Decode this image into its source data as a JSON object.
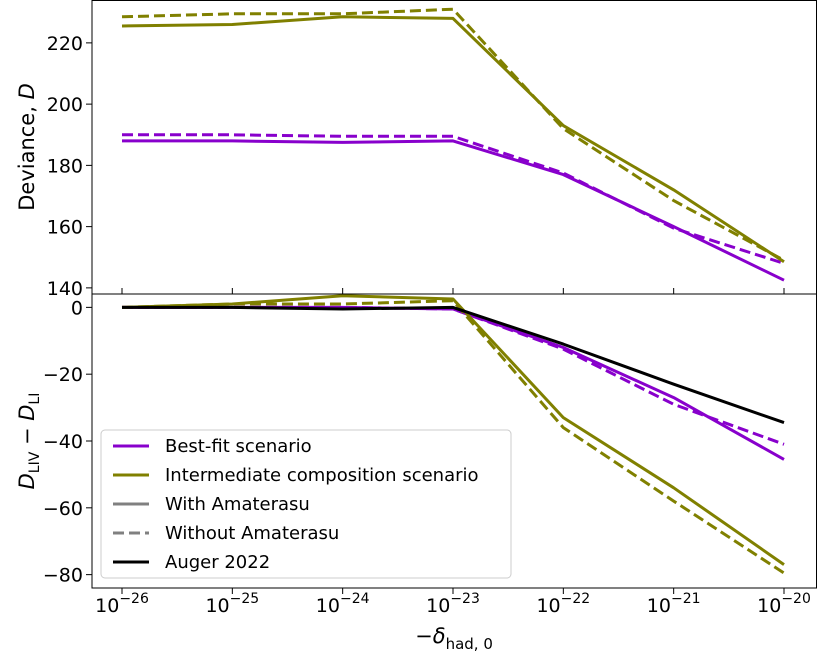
{
  "chart_data": [
    {
      "type": "line",
      "panel": "top",
      "ylabel_main": "Deviance, ",
      "ylabel_var": "D",
      "xscale": "log",
      "x": [
        1e-26,
        1e-25,
        1e-24,
        1e-23,
        1e-22,
        1e-21,
        1e-20
      ],
      "ylim": [
        138,
        234
      ],
      "yticks": [
        "140",
        "160",
        "180",
        "200",
        "220"
      ],
      "ytick_values": [
        140,
        160,
        180,
        200,
        220
      ],
      "series": [
        {
          "scenario": "best-fit",
          "style": "solid",
          "color": "#8800cc",
          "values": [
            188,
            188,
            187.5,
            188,
            177,
            160,
            142.5
          ]
        },
        {
          "scenario": "best-fit",
          "style": "dashed",
          "color": "#8800cc",
          "values": [
            190,
            190,
            189.5,
            189.5,
            177.5,
            159.5,
            148
          ]
        },
        {
          "scenario": "intermediate",
          "style": "solid",
          "color": "#808000",
          "values": [
            225.5,
            226,
            228.5,
            228,
            193,
            172,
            148.5
          ]
        },
        {
          "scenario": "intermediate",
          "style": "dashed",
          "color": "#808000",
          "values": [
            228.5,
            229.5,
            229.5,
            231,
            192,
            168.5,
            149
          ]
        }
      ]
    },
    {
      "type": "line",
      "panel": "bottom",
      "xlabel_main": "−δ",
      "xlabel_sub": "had, 0",
      "ylabel_main": "D",
      "ylabel_sub1": "LIV",
      "ylabel_mid": " − D",
      "ylabel_sub2": "LI",
      "xscale": "log",
      "x": [
        1e-26,
        1e-25,
        1e-24,
        1e-23,
        1e-22,
        1e-21,
        1e-20
      ],
      "xtick_base": "10",
      "xtick_exponents": [
        "−26",
        "−25",
        "−24",
        "−23",
        "−22",
        "−21",
        "−20"
      ],
      "ylim": [
        -84,
        4
      ],
      "yticks": [
        "−80",
        "−60",
        "−40",
        "−20",
        "0"
      ],
      "ytick_values": [
        -80,
        -60,
        -40,
        -20,
        0
      ],
      "series": [
        {
          "scenario": "best-fit",
          "style": "solid",
          "color": "#8800cc",
          "values": [
            0,
            0,
            0,
            -0.5,
            -12,
            -27,
            -45.5
          ]
        },
        {
          "scenario": "best-fit",
          "style": "dashed",
          "color": "#8800cc",
          "values": [
            0,
            0,
            0,
            -0.5,
            -12.5,
            -29,
            -41
          ]
        },
        {
          "scenario": "intermediate",
          "style": "solid",
          "color": "#808000",
          "values": [
            0,
            1,
            3.5,
            2.5,
            -33,
            -54,
            -77
          ]
        },
        {
          "scenario": "intermediate",
          "style": "dashed",
          "color": "#808000",
          "values": [
            0,
            1,
            1,
            2,
            -36,
            -58,
            -79.5
          ]
        },
        {
          "scenario": "auger",
          "style": "solid",
          "color": "#000000",
          "values": [
            0,
            0,
            -0.5,
            0,
            -11,
            -23,
            -34.5
          ]
        }
      ],
      "legend": {
        "position": "lower-left",
        "entries": [
          {
            "name": "Best-fit scenario",
            "color": "#8800cc",
            "style": "solid"
          },
          {
            "name": "Intermediate composition scenario",
            "color": "#808000",
            "style": "solid"
          },
          {
            "name": "With Amaterasu",
            "color": "#808080",
            "style": "solid"
          },
          {
            "name": "Without Amaterasu",
            "color": "#808080",
            "style": "dashed"
          },
          {
            "name": "Auger 2022",
            "color": "#000000",
            "style": "solid"
          }
        ]
      }
    }
  ]
}
